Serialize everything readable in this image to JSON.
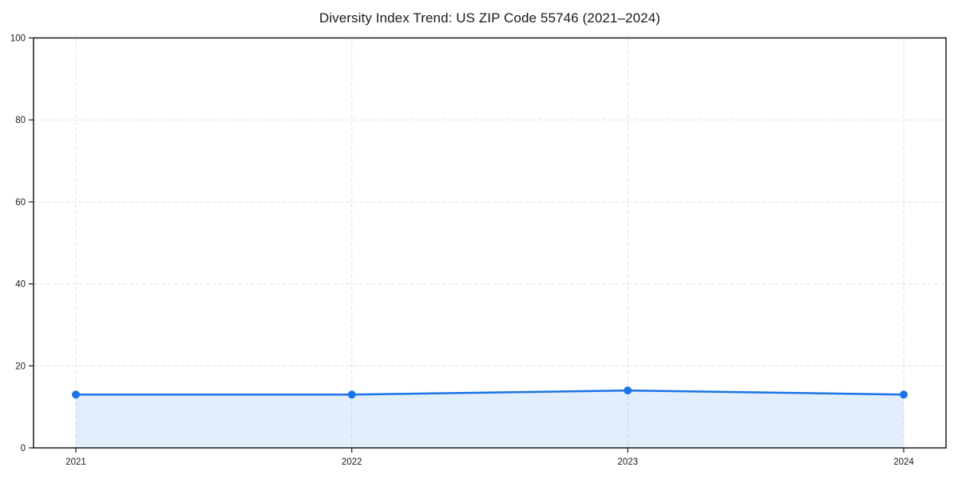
{
  "chart_data": {
    "type": "area",
    "title": "Diversity Index Trend: US ZIP Code 55746 (2021–2024)",
    "xlabel": "",
    "ylabel": "",
    "categories": [
      "2021",
      "2022",
      "2023",
      "2024"
    ],
    "series": [
      {
        "name": "Diversity Index",
        "values": [
          13,
          13,
          14,
          13
        ]
      }
    ],
    "ylim": [
      0,
      100
    ],
    "yticks": [
      0,
      20,
      40,
      60,
      80,
      100
    ],
    "xticks": [
      "2021",
      "2022",
      "2023",
      "2024"
    ],
    "grid": true,
    "grid_style": "dashed",
    "legend": false,
    "colors": {
      "line": "#1a73e8",
      "marker": "#1a73e8",
      "area_fill": "rgba(26,115,232,0.12)",
      "grid": "#e0e0e0",
      "axis": "#1a1a1a",
      "tick_text": "#1a1a1a",
      "background": "#ffffff"
    }
  }
}
